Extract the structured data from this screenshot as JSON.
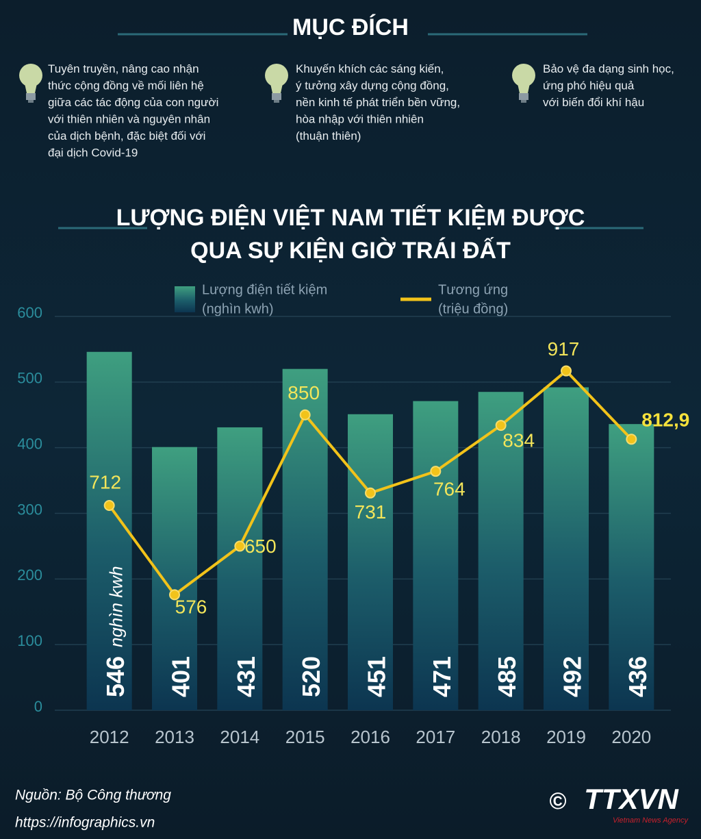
{
  "header": {
    "title": "MỤC ĐÍCH"
  },
  "items": [
    {
      "lines": [
        "Tuyên truyền, nâng cao nhận",
        "thức cộng đồng về mối liên hệ",
        "giữa các tác động của con người",
        "với thiên nhiên và nguyên nhân",
        "của dịch bệnh, đặc biệt đối với",
        "đại dịch Covid-19"
      ]
    },
    {
      "lines": [
        "Khuyến khích các sáng kiến,",
        "ý tưởng xây dựng cộng đồng,",
        "nền kinh tế phát triển bền vững,",
        "hòa nhập với thiên nhiên",
        "(thuận thiên)"
      ]
    },
    {
      "lines": [
        "Bảo vệ đa dạng sinh học,",
        "ứng phó hiệu quả",
        "với biến đổi khí hậu"
      ]
    }
  ],
  "chart_data": {
    "type": "bar",
    "title": [
      "LƯỢNG ĐIỆN VIỆT NAM TIẾT KIỆM ĐƯỢC",
      "QUA SỰ KIỆN GIỜ TRÁI ĐẤT"
    ],
    "categories": [
      "2012",
      "2013",
      "2014",
      "2015",
      "2016",
      "2017",
      "2018",
      "2019",
      "2020"
    ],
    "series": [
      {
        "name": "Lượng điện tiết kiệm",
        "unit": "(nghìn  kwh)",
        "type": "bar",
        "color": "#3f9f80",
        "values": [
          546,
          401,
          431,
          520,
          451,
          471,
          485,
          492,
          436
        ]
      },
      {
        "name": "Tương ứng",
        "unit": "(triệu đồng)",
        "type": "line",
        "axis": "y2",
        "color": "#f2c31a",
        "values": [
          712,
          576,
          650,
          850,
          731,
          764,
          834,
          917,
          812.9
        ],
        "value_labels": [
          "712",
          "576",
          "650",
          "850",
          "731",
          "764",
          "834",
          "917",
          "812,9"
        ]
      }
    ],
    "bar_unit_label": "nghìn kwh",
    "ylim": [
      0,
      600
    ],
    "yticks": [
      0,
      100,
      200,
      300,
      400,
      500,
      600
    ],
    "y2lim": [
      400,
      1000
    ],
    "grid": true
  },
  "footer": {
    "source": "Nguồn: Bộ Công thương",
    "url": "https://infographics.vn",
    "copyright": "©",
    "logo": "TTXVN",
    "agency": "Vietnam News Agency"
  }
}
